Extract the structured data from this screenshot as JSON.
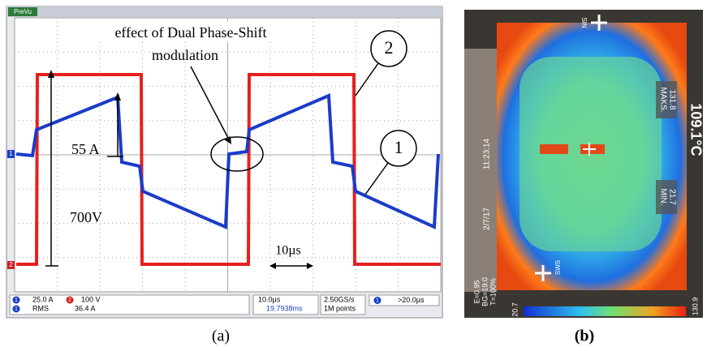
{
  "panel_a": {
    "scope_mode": "PreVu",
    "channel_markers": [
      "1",
      "2"
    ],
    "annotation_lines": [
      "effect of Dual Phase-Shift",
      "modulation"
    ],
    "callouts": [
      "2",
      "1"
    ],
    "labels": {
      "current": "55 A",
      "voltage": "700V",
      "time": "10µs"
    },
    "status": {
      "ch1": "1",
      "ch1_scale": "25.0 A",
      "ch2": "2",
      "ch2_scale": "100 V",
      "meas_ch": "1",
      "meas_name": "RMS",
      "meas_value": "36.4 A",
      "timebase": "10.0µs",
      "position": "19.7938ms",
      "sample_rate": "2.50GS/s",
      "record": "1M points",
      "trigger_ch": "1",
      "trigger": ">20.0µs"
    },
    "caption": "(a)"
  },
  "panel_b": {
    "max_label": "MAKS.",
    "max_value": "131.8",
    "min_label": "MIN.",
    "min_value": "21.7",
    "temperature": "109.1°C",
    "date": "2/7/17",
    "time": "11:23:14",
    "emissivity": "E=0.95",
    "background": "BG=19.0",
    "transmission": "T=100%",
    "scale_min": "20.7",
    "scale_max": "130.9",
    "marker_top": "SIN",
    "marker_bottom": "SWS",
    "caption": "(b)"
  }
}
